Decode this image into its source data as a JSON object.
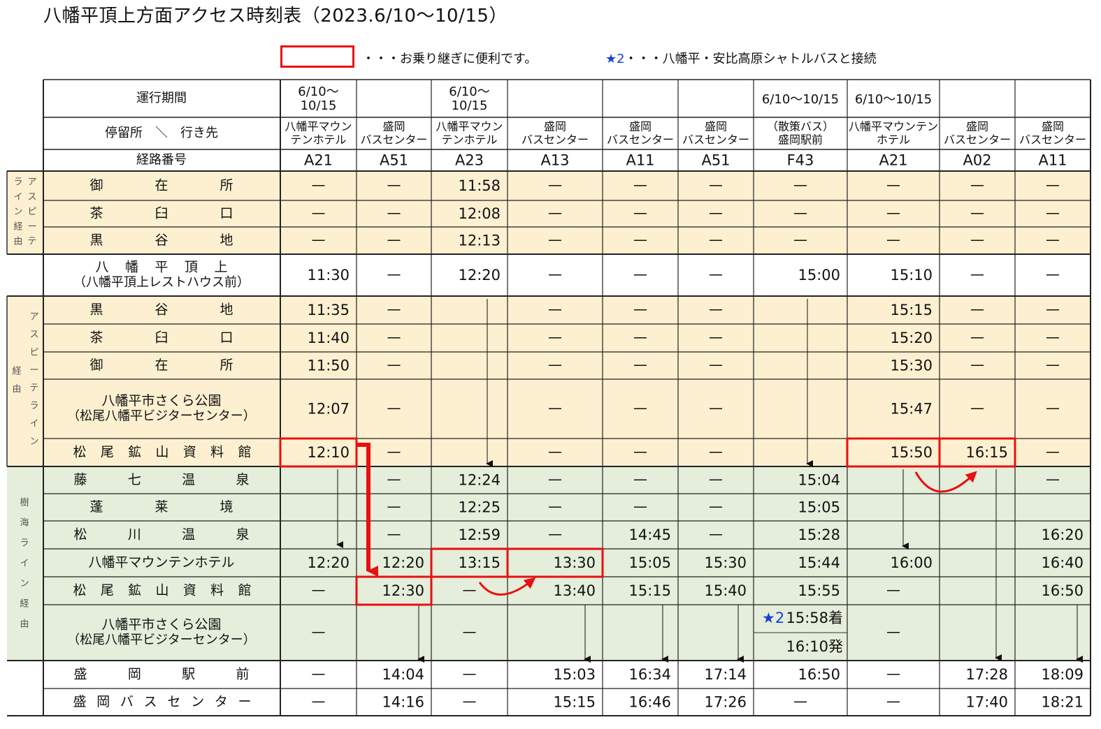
{
  "title": "八幡平頂上方面アクセス時刻表（2023.6/10～10/15）",
  "legend": {
    "transfer_note": "・・・お乗り継ぎに便利です。",
    "star_mark": "★2",
    "star_note": "・・・八幡平・安比高原シャトルバスと接続"
  },
  "colors": {
    "highlight": "#e81010",
    "aspite_bg": "#fdf0d0",
    "jukai_bg": "#e4eedb",
    "star": "#1a3fd6"
  },
  "header": {
    "period_label": "運行期間",
    "stop_label": "停留所　＼　行き先",
    "route_label": "経路番号"
  },
  "columns": [
    {
      "period": [
        "6/10～",
        "10/15"
      ],
      "dest": [
        "八幡平マウン",
        "テンホテル"
      ],
      "route": "A21"
    },
    {
      "period": [],
      "dest": [
        "盛岡",
        "バスセンター"
      ],
      "route": "A51"
    },
    {
      "period": [
        "6/10～",
        "10/15"
      ],
      "dest": [
        "八幡平マウン",
        "テンホテル"
      ],
      "route": "A23"
    },
    {
      "period": [],
      "dest": [
        "盛岡",
        "バスセンター"
      ],
      "route": "A13"
    },
    {
      "period": [],
      "dest": [
        "盛岡",
        "バスセンター"
      ],
      "route": "A11"
    },
    {
      "period": [],
      "dest": [
        "盛岡",
        "バスセンター"
      ],
      "route": "A51"
    },
    {
      "period": [
        "6/10～10/15"
      ],
      "dest": [
        "（散策バス）",
        "盛岡駅前"
      ],
      "route": "F43"
    },
    {
      "period": [
        "6/10～10/15"
      ],
      "dest": [
        "八幡平マウンテン",
        "ホテル"
      ],
      "route": "A21"
    },
    {
      "period": [],
      "dest": [
        "盛岡",
        "バスセンター"
      ],
      "route": "A02"
    },
    {
      "period": [],
      "dest": [
        "盛岡",
        "バスセンター"
      ],
      "route": "A11"
    }
  ],
  "groups": [
    {
      "label": [
        "ラ",
        "イ",
        "ン",
        "経",
        "由",
        "ア",
        "ス",
        "ピ",
        "ー",
        "テ"
      ],
      "rows": [
        0,
        2
      ],
      "color": "aspite"
    },
    {
      "label": [
        "ア",
        "ス",
        "ピ",
        "ー",
        "テ",
        "ラ",
        "イ",
        "ン",
        "経",
        "由"
      ],
      "rows": [
        4,
        8
      ],
      "color": "aspite"
    },
    {
      "label": [
        "樹",
        "海",
        "ラ",
        "イ",
        "ン",
        "経",
        "由"
      ],
      "rows": [
        9,
        14
      ],
      "color": "jukai"
    }
  ],
  "rows": [
    {
      "stop": [
        "御",
        "在",
        "所"
      ],
      "cells": [
        "—",
        "—",
        "11:58",
        "—",
        "—",
        "—",
        "—",
        "—",
        "—",
        "—"
      ]
    },
    {
      "stop": [
        "茶",
        "臼",
        "口"
      ],
      "cells": [
        "—",
        "—",
        "12:08",
        "—",
        "—",
        "—",
        "—",
        "—",
        "—",
        "—"
      ]
    },
    {
      "stop": [
        "黒",
        "谷",
        "地"
      ],
      "cells": [
        "—",
        "—",
        "12:13",
        "—",
        "—",
        "—",
        "—",
        "—",
        "—",
        "—"
      ]
    },
    {
      "stop": [
        "八",
        "幡",
        "平",
        "頂",
        "上"
      ],
      "sub": "（八幡平頂上レストハウス前）",
      "cells": [
        "11:30",
        "—",
        "12:20",
        "—",
        "—",
        "—",
        "15:00",
        "15:10",
        "—",
        "—"
      ]
    },
    {
      "stop": [
        "黒",
        "谷",
        "地"
      ],
      "cells": [
        "11:35",
        "—",
        "",
        "—",
        "—",
        "—",
        "",
        "15:15",
        "—",
        "—"
      ]
    },
    {
      "stop": [
        "茶",
        "臼",
        "口"
      ],
      "cells": [
        "11:40",
        "—",
        "",
        "—",
        "—",
        "—",
        "",
        "15:20",
        "—",
        "—"
      ]
    },
    {
      "stop": [
        "御",
        "在",
        "所"
      ],
      "cells": [
        "11:50",
        "—",
        "",
        "—",
        "—",
        "—",
        "",
        "15:30",
        "—",
        "—"
      ]
    },
    {
      "stop": [
        "八幡平市さくら公園"
      ],
      "sub": "（松尾八幡平ビジターセンター）",
      "cells": [
        "12:07",
        "—",
        "",
        "—",
        "—",
        "—",
        "",
        "15:47",
        "—",
        "—"
      ]
    },
    {
      "stop": [
        "松",
        "尾",
        "鉱",
        "山",
        "資",
        "料",
        "館"
      ],
      "cells": [
        "12:10",
        "—",
        "",
        "—",
        "—",
        "—",
        "",
        "15:50",
        "16:15",
        "—"
      ]
    },
    {
      "stop": [
        "藤",
        "七",
        "温",
        "泉"
      ],
      "cells": [
        "",
        "—",
        "12:24",
        "—",
        "—",
        "—",
        "15:04",
        "",
        "",
        "—"
      ]
    },
    {
      "stop": [
        "蓬",
        "莱",
        "境"
      ],
      "cells": [
        "",
        "—",
        "12:25",
        "—",
        "—",
        "—",
        "15:05",
        "",
        "",
        ""
      ]
    },
    {
      "stop": [
        "松",
        "川",
        "温",
        "泉"
      ],
      "cells": [
        "",
        "—",
        "12:59",
        "—",
        "14:45",
        "—",
        "15:28",
        "",
        "",
        "16:20"
      ]
    },
    {
      "stop": [
        "八幡平マウンテンホテル"
      ],
      "cells": [
        "12:20",
        "12:20",
        "13:15",
        "13:30",
        "15:05",
        "15:30",
        "15:44",
        "16:00",
        "",
        "16:40"
      ]
    },
    {
      "stop": [
        "松",
        "尾",
        "鉱",
        "山",
        "資",
        "料",
        "館"
      ],
      "cells": [
        "—",
        "12:30",
        "—",
        "13:40",
        "15:15",
        "15:40",
        "15:55",
        "—",
        "",
        "16:50"
      ]
    },
    {
      "stop": [
        "八幡平市さくら公園"
      ],
      "sub": "（松尾八幡平ビジターセンター）",
      "cells": [
        "—",
        "",
        "—",
        "",
        "",
        "",
        "",
        "—",
        "",
        ""
      ],
      "f43_split": {
        "star": "★2",
        "arrive": " 15:58着",
        "depart": "16:10発"
      }
    },
    {
      "stop": [
        "盛",
        "岡",
        "駅",
        "前"
      ],
      "cells": [
        "—",
        "14:04",
        "—",
        "15:03",
        "16:34",
        "17:14",
        "16:50",
        "—",
        "17:28",
        "18:09"
      ]
    },
    {
      "stop": [
        "盛",
        "岡",
        "バ",
        "ス",
        "セ",
        "ン",
        "タ",
        "ー"
      ],
      "cells": [
        "—",
        "14:16",
        "—",
        "15:15",
        "16:46",
        "17:26",
        "—",
        "—",
        "17:40",
        "18:21"
      ]
    }
  ]
}
